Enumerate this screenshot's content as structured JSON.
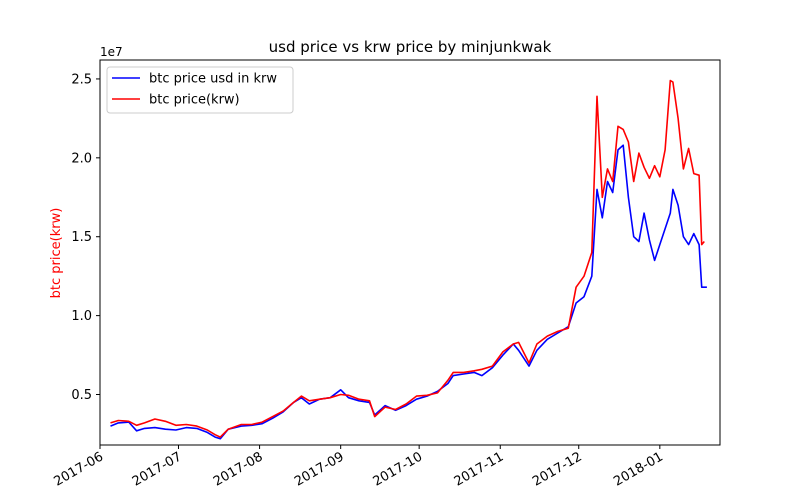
{
  "chart_data": {
    "type": "line",
    "title": "usd price vs krw price by minjunkwak",
    "xlabel": "",
    "ylabel": "btc price(krw)",
    "ylabel_color": "#ff0000",
    "offset_label": "1e7",
    "ylim": [
      1800000,
      26200000
    ],
    "xlim": [
      "2017-06-01",
      "2018-01-24"
    ],
    "yticks": [
      5000000,
      10000000,
      15000000,
      20000000,
      25000000
    ],
    "ytick_labels": [
      "0.5",
      "1.0",
      "1.5",
      "2.0",
      "2.5"
    ],
    "xticks": [
      "2017-06-01",
      "2017-07-01",
      "2017-08-01",
      "2017-09-01",
      "2017-10-01",
      "2017-11-01",
      "2017-12-01",
      "2018-01-01"
    ],
    "xtick_labels": [
      "2017-06",
      "2017-07",
      "2017-08",
      "2017-09",
      "2017-10",
      "2017-11",
      "2017-12",
      "2018-01"
    ],
    "grid": false,
    "legend_position": "top-left",
    "series": [
      {
        "name": "btc price usd in krw",
        "color": "#0000ff",
        "points": [
          [
            "2017-06-05",
            3000000
          ],
          [
            "2017-06-08",
            3200000
          ],
          [
            "2017-06-12",
            3250000
          ],
          [
            "2017-06-15",
            2700000
          ],
          [
            "2017-06-18",
            2850000
          ],
          [
            "2017-06-22",
            2900000
          ],
          [
            "2017-06-26",
            2800000
          ],
          [
            "2017-06-30",
            2750000
          ],
          [
            "2017-07-04",
            2900000
          ],
          [
            "2017-07-08",
            2850000
          ],
          [
            "2017-07-12",
            2600000
          ],
          [
            "2017-07-15",
            2300000
          ],
          [
            "2017-07-17",
            2200000
          ],
          [
            "2017-07-20",
            2800000
          ],
          [
            "2017-07-25",
            3000000
          ],
          [
            "2017-07-29",
            3050000
          ],
          [
            "2017-08-02",
            3150000
          ],
          [
            "2017-08-06",
            3500000
          ],
          [
            "2017-08-10",
            3900000
          ],
          [
            "2017-08-14",
            4500000
          ],
          [
            "2017-08-17",
            4800000
          ],
          [
            "2017-08-20",
            4400000
          ],
          [
            "2017-08-24",
            4700000
          ],
          [
            "2017-08-28",
            4800000
          ],
          [
            "2017-09-01",
            5300000
          ],
          [
            "2017-09-04",
            4800000
          ],
          [
            "2017-09-08",
            4600000
          ],
          [
            "2017-09-12",
            4500000
          ],
          [
            "2017-09-14",
            3700000
          ],
          [
            "2017-09-18",
            4300000
          ],
          [
            "2017-09-22",
            4000000
          ],
          [
            "2017-09-26",
            4300000
          ],
          [
            "2017-09-30",
            4700000
          ],
          [
            "2017-10-04",
            4900000
          ],
          [
            "2017-10-08",
            5200000
          ],
          [
            "2017-10-12",
            5700000
          ],
          [
            "2017-10-14",
            6200000
          ],
          [
            "2017-10-18",
            6300000
          ],
          [
            "2017-10-22",
            6400000
          ],
          [
            "2017-10-25",
            6200000
          ],
          [
            "2017-10-29",
            6700000
          ],
          [
            "2017-11-02",
            7500000
          ],
          [
            "2017-11-06",
            8200000
          ],
          [
            "2017-11-08",
            7800000
          ],
          [
            "2017-11-12",
            6800000
          ],
          [
            "2017-11-15",
            7800000
          ],
          [
            "2017-11-19",
            8500000
          ],
          [
            "2017-11-23",
            8900000
          ],
          [
            "2017-11-27",
            9300000
          ],
          [
            "2017-11-30",
            10800000
          ],
          [
            "2017-12-03",
            11200000
          ],
          [
            "2017-12-06",
            12500000
          ],
          [
            "2017-12-08",
            18000000
          ],
          [
            "2017-12-10",
            16200000
          ],
          [
            "2017-12-12",
            18500000
          ],
          [
            "2017-12-14",
            17800000
          ],
          [
            "2017-12-16",
            20500000
          ],
          [
            "2017-12-18",
            20800000
          ],
          [
            "2017-12-20",
            17500000
          ],
          [
            "2017-12-22",
            15000000
          ],
          [
            "2017-12-24",
            14700000
          ],
          [
            "2017-12-26",
            16500000
          ],
          [
            "2017-12-28",
            14800000
          ],
          [
            "2017-12-30",
            13500000
          ],
          [
            "2018-01-01",
            14500000
          ],
          [
            "2018-01-03",
            15500000
          ],
          [
            "2018-01-05",
            16500000
          ],
          [
            "2018-01-06",
            18000000
          ],
          [
            "2018-01-08",
            17000000
          ],
          [
            "2018-01-10",
            15000000
          ],
          [
            "2018-01-12",
            14500000
          ],
          [
            "2018-01-14",
            15200000
          ],
          [
            "2018-01-16",
            14500000
          ],
          [
            "2018-01-17",
            11800000
          ],
          [
            "2018-01-19",
            11800000
          ]
        ]
      },
      {
        "name": "btc price(krw)",
        "color": "#ff0000",
        "points": [
          [
            "2017-06-05",
            3200000
          ],
          [
            "2017-06-08",
            3350000
          ],
          [
            "2017-06-12",
            3300000
          ],
          [
            "2017-06-15",
            3050000
          ],
          [
            "2017-06-18",
            3200000
          ],
          [
            "2017-06-22",
            3450000
          ],
          [
            "2017-06-26",
            3300000
          ],
          [
            "2017-06-30",
            3050000
          ],
          [
            "2017-07-04",
            3100000
          ],
          [
            "2017-07-08",
            3000000
          ],
          [
            "2017-07-12",
            2750000
          ],
          [
            "2017-07-15",
            2450000
          ],
          [
            "2017-07-17",
            2300000
          ],
          [
            "2017-07-20",
            2800000
          ],
          [
            "2017-07-25",
            3100000
          ],
          [
            "2017-07-29",
            3100000
          ],
          [
            "2017-08-02",
            3250000
          ],
          [
            "2017-08-06",
            3600000
          ],
          [
            "2017-08-10",
            3950000
          ],
          [
            "2017-08-14",
            4500000
          ],
          [
            "2017-08-17",
            4900000
          ],
          [
            "2017-08-20",
            4600000
          ],
          [
            "2017-08-24",
            4700000
          ],
          [
            "2017-08-28",
            4800000
          ],
          [
            "2017-09-01",
            5000000
          ],
          [
            "2017-09-04",
            4950000
          ],
          [
            "2017-09-08",
            4700000
          ],
          [
            "2017-09-12",
            4600000
          ],
          [
            "2017-09-14",
            3600000
          ],
          [
            "2017-09-18",
            4200000
          ],
          [
            "2017-09-22",
            4050000
          ],
          [
            "2017-09-26",
            4400000
          ],
          [
            "2017-09-30",
            4900000
          ],
          [
            "2017-10-04",
            4950000
          ],
          [
            "2017-10-08",
            5100000
          ],
          [
            "2017-10-12",
            5900000
          ],
          [
            "2017-10-14",
            6400000
          ],
          [
            "2017-10-18",
            6400000
          ],
          [
            "2017-10-22",
            6500000
          ],
          [
            "2017-10-25",
            6600000
          ],
          [
            "2017-10-29",
            6800000
          ],
          [
            "2017-11-02",
            7700000
          ],
          [
            "2017-11-06",
            8200000
          ],
          [
            "2017-11-08",
            8300000
          ],
          [
            "2017-11-12",
            7000000
          ],
          [
            "2017-11-15",
            8200000
          ],
          [
            "2017-11-19",
            8700000
          ],
          [
            "2017-11-23",
            9000000
          ],
          [
            "2017-11-27",
            9200000
          ],
          [
            "2017-11-30",
            11800000
          ],
          [
            "2017-12-03",
            12500000
          ],
          [
            "2017-12-06",
            14000000
          ],
          [
            "2017-12-08",
            23900000
          ],
          [
            "2017-12-10",
            17500000
          ],
          [
            "2017-12-12",
            19300000
          ],
          [
            "2017-12-14",
            18500000
          ],
          [
            "2017-12-16",
            22000000
          ],
          [
            "2017-12-18",
            21800000
          ],
          [
            "2017-12-20",
            21000000
          ],
          [
            "2017-12-22",
            18500000
          ],
          [
            "2017-12-24",
            20300000
          ],
          [
            "2017-12-26",
            19400000
          ],
          [
            "2017-12-28",
            18700000
          ],
          [
            "2017-12-30",
            19500000
          ],
          [
            "2018-01-01",
            18800000
          ],
          [
            "2018-01-03",
            20500000
          ],
          [
            "2018-01-05",
            24900000
          ],
          [
            "2018-01-06",
            24800000
          ],
          [
            "2018-01-08",
            22500000
          ],
          [
            "2018-01-10",
            19300000
          ],
          [
            "2018-01-12",
            20600000
          ],
          [
            "2018-01-14",
            19000000
          ],
          [
            "2018-01-16",
            18900000
          ],
          [
            "2018-01-17",
            14500000
          ],
          [
            "2018-01-18",
            14700000
          ]
        ]
      }
    ]
  }
}
